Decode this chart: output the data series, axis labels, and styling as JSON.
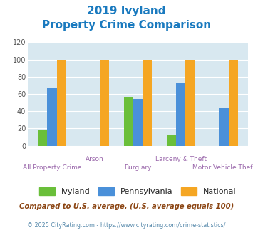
{
  "title_line1": "2019 Ivyland",
  "title_line2": "Property Crime Comparison",
  "title_color": "#1a7abf",
  "categories": [
    "All Property Crime",
    "Arson",
    "Burglary",
    "Larceny & Theft",
    "Motor Vehicle Theft"
  ],
  "ivyland": [
    18,
    0,
    57,
    13,
    0
  ],
  "pennsylvania": [
    67,
    0,
    54,
    73,
    44
  ],
  "national": [
    100,
    100,
    100,
    100,
    100
  ],
  "color_ivyland": "#6abf3a",
  "color_pennsylvania": "#4a90d9",
  "color_national": "#f5a623",
  "ylim": [
    0,
    120
  ],
  "yticks": [
    0,
    20,
    40,
    60,
    80,
    100,
    120
  ],
  "plot_bg": "#d8e8f0",
  "legend_labels": [
    "Ivyland",
    "Pennsylvania",
    "National"
  ],
  "footnote1": "Compared to U.S. average. (U.S. average equals 100)",
  "footnote2": "© 2025 CityRating.com - https://www.cityrating.com/crime-statistics/",
  "footnote1_color": "#8b4513",
  "footnote2_color": "#5588aa",
  "xlabel_color": "#9966aa",
  "bar_width": 0.22,
  "group_labels_top": [
    "",
    "Arson",
    "",
    "Larceny & Theft",
    ""
  ],
  "group_labels_bot": [
    "All Property Crime",
    "",
    "Burglary",
    "",
    "Motor Vehicle Theft"
  ]
}
